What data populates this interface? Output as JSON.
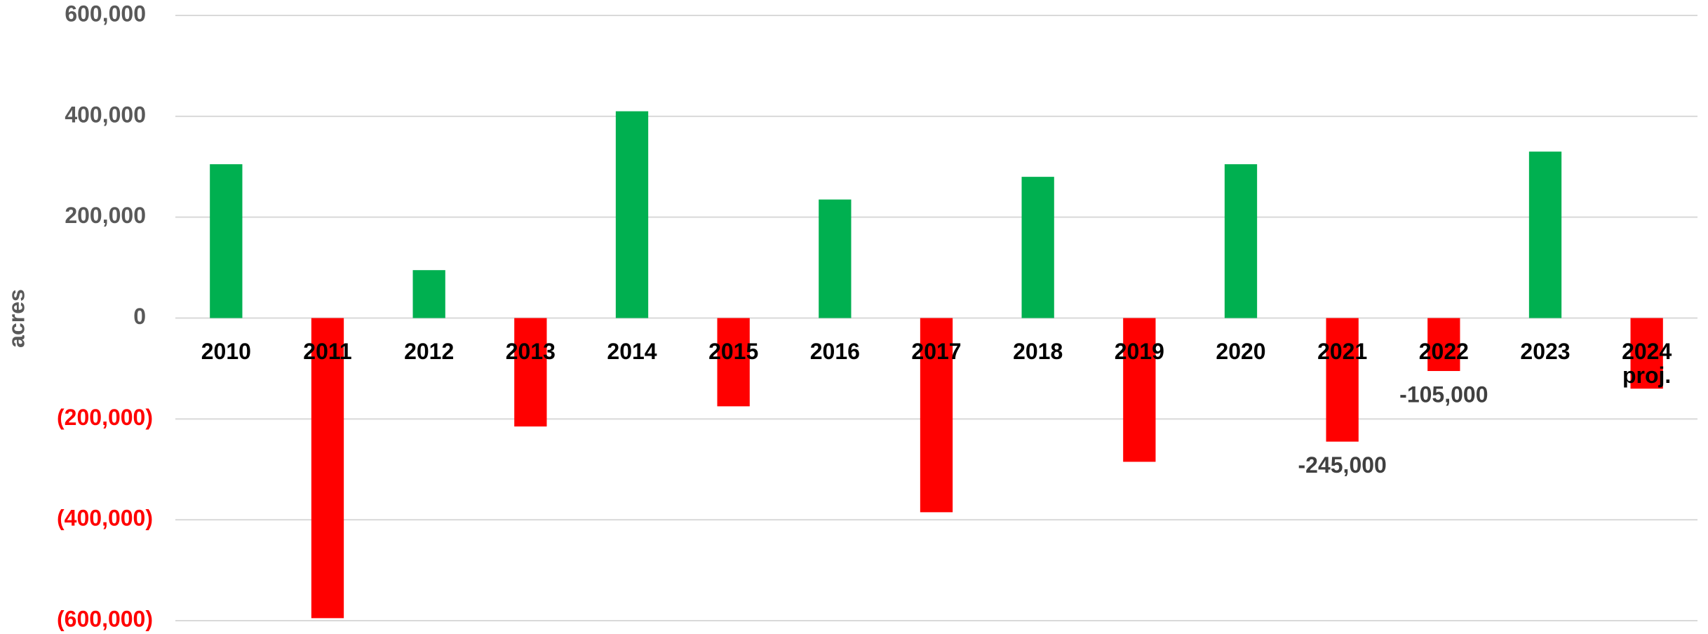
{
  "chart_data": {
    "type": "bar",
    "ylabel": "acres",
    "categories": [
      "2010",
      "2011",
      "2012",
      "2013",
      "2014",
      "2015",
      "2016",
      "2017",
      "2018",
      "2019",
      "2020",
      "2021",
      "2022",
      "2023",
      "2024 proj."
    ],
    "values": [
      305000,
      -595000,
      95000,
      -215000,
      410000,
      -175000,
      235000,
      -385000,
      280000,
      -285000,
      305000,
      -245000,
      -105000,
      330000,
      -140000
    ],
    "value_labels": [
      null,
      null,
      null,
      null,
      null,
      null,
      null,
      null,
      null,
      null,
      null,
      "-245,000",
      "-105,000",
      null,
      null
    ],
    "color": "#00b050",
    "negative_color": "#ff0000",
    "negative_tick_color": "#ff0000",
    "ylim": [
      -600000,
      600000
    ],
    "yticks": [
      {
        "value": -600000,
        "label": "(600,000)"
      },
      {
        "value": -400000,
        "label": "(400,000)"
      },
      {
        "value": -200000,
        "label": "(200,000)"
      },
      0,
      {
        "value": 200000,
        "label": "200,000"
      },
      {
        "value": 400000,
        "label": "400,000"
      },
      {
        "value": 600000,
        "label": "600,000"
      }
    ],
    "grid": true
  }
}
